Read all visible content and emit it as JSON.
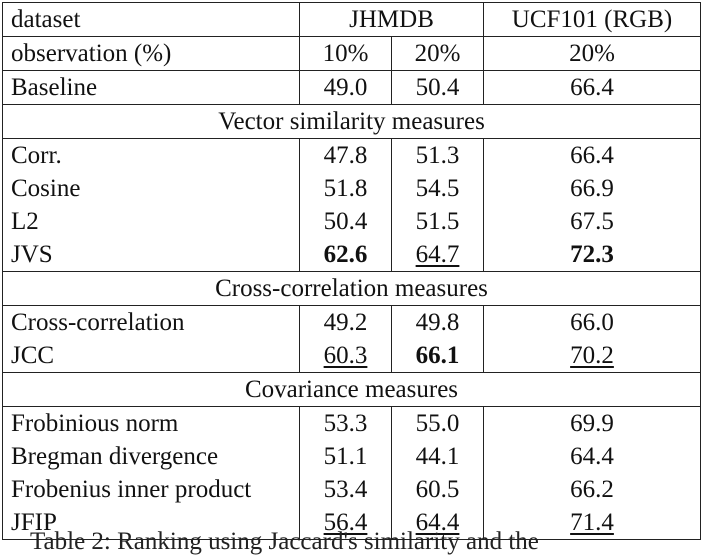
{
  "header": {
    "dataset_label": "dataset",
    "jhmdb_label": "JHMDB",
    "ucf_label": "UCF101 (RGB)",
    "observation_label": "observation (%)",
    "obs_values": [
      "10%",
      "20%",
      "20%"
    ]
  },
  "baseline": {
    "label": "Baseline",
    "v1": "49.0",
    "v2": "50.4",
    "v3": "66.4"
  },
  "sections": [
    {
      "title": "Vector similarity measures",
      "rows": [
        {
          "label": "Corr.",
          "v1": "47.8",
          "v2": "51.3",
          "v3": "66.4"
        },
        {
          "label": "Cosine",
          "v1": "51.8",
          "v2": "54.5",
          "v3": "66.9"
        },
        {
          "label": "L2",
          "v1": "50.4",
          "v2": "51.5",
          "v3": "67.5"
        },
        {
          "label": "JVS",
          "v1": "62.6",
          "v2": "64.7",
          "v3": "72.3"
        }
      ]
    },
    {
      "title": "Cross-correlation measures",
      "rows": [
        {
          "label": "Cross-correlation",
          "v1": "49.2",
          "v2": "49.8",
          "v3": "66.0"
        },
        {
          "label": "JCC",
          "v1": "60.3",
          "v2": "66.1",
          "v3": "70.2"
        }
      ]
    },
    {
      "title": "Covariance measures",
      "rows": [
        {
          "label": "Frobinious norm",
          "v1": "53.3",
          "v2": "55.0",
          "v3": "69.9"
        },
        {
          "label": "Bregman divergence",
          "v1": "51.1",
          "v2": "44.1",
          "v3": "64.4"
        },
        {
          "label": "Frobenius inner product",
          "v1": "53.4",
          "v2": "60.5",
          "v3": "66.2"
        },
        {
          "label": "JFIP",
          "v1": "56.4",
          "v2": "64.4",
          "v3": "71.4"
        }
      ]
    }
  ],
  "caption": "Table 2: Ranking using Jaccard's similarity and the"
}
